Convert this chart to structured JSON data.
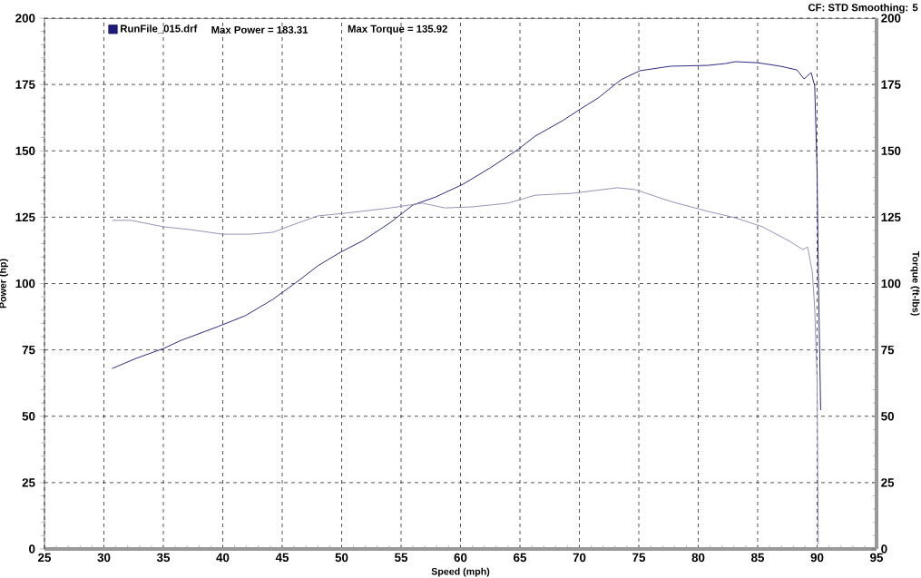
{
  "chart_data": {
    "type": "line",
    "xlabel": "Speed (mph)",
    "ylabel": "Power (hp)",
    "y2label": "Torque (ft-lbs)",
    "annotations": [
      "CF: STD Smoothing: 5",
      "Max Power = 183.31",
      "Max Torque = 135.92"
    ],
    "xlim": [
      25,
      95
    ],
    "xticks": [
      25,
      30,
      35,
      40,
      45,
      50,
      55,
      60,
      65,
      70,
      75,
      80,
      85,
      90,
      95
    ],
    "ylim": [
      0,
      200
    ],
    "yticks": [
      0,
      25,
      50,
      75,
      100,
      125,
      150,
      175,
      200
    ],
    "y2lim": [
      0,
      200
    ],
    "y2ticks": [
      0,
      25,
      50,
      75,
      100,
      125,
      150,
      175,
      200
    ],
    "grid": true,
    "legend": "top left",
    "series": [
      {
        "name": "RunFile_015.drf",
        "color": "#1c1c78",
        "x": [
          30.7,
          32.7,
          35,
          36.5,
          39.6,
          41.9,
          44.2,
          46.5,
          48,
          49.9,
          51.8,
          54.1,
          56,
          57.9,
          60.2,
          62.5,
          64.8,
          66.3,
          68.6,
          70.1,
          71.6,
          73.5,
          75.1,
          77.7,
          80.8,
          82.3,
          83.1,
          85,
          86.9,
          88.3,
          88.9,
          89.5,
          89.8,
          90.0,
          90.1,
          90.3
        ],
        "values": [
          68,
          71.8,
          75.5,
          78.6,
          83.8,
          87.9,
          94,
          101.5,
          106.7,
          111.8,
          116.2,
          123,
          129.6,
          132.6,
          137.4,
          143.6,
          150.4,
          155.6,
          161.4,
          165.8,
          170,
          176.8,
          180.2,
          181.9,
          182.2,
          182.9,
          183.6,
          183.2,
          181.9,
          180.5,
          177.1,
          179.5,
          174.4,
          141.9,
          104.3,
          52.3
        ]
      },
      {
        "color": "#8c8cb4",
        "axis": "y2",
        "x": [
          30.7,
          32.3,
          35,
          37.3,
          40,
          42.3,
          44.2,
          46.5,
          48,
          50.3,
          54.1,
          56.8,
          58.7,
          61,
          64,
          66.3,
          69.4,
          73.2,
          74.7,
          77.7,
          80.8,
          83.1,
          85.4,
          87.7,
          88.8,
          89.2,
          89.6,
          89.8,
          90.0,
          90.1
        ],
        "values": [
          123.8,
          123.8,
          121.4,
          120.3,
          118.6,
          118.6,
          119.3,
          123.1,
          125.5,
          126.5,
          128.5,
          130.3,
          128.5,
          128.9,
          130.3,
          133.3,
          134,
          136.1,
          135.4,
          130.9,
          127.2,
          124.8,
          121.4,
          115.9,
          112.8,
          113.8,
          104.3,
          90.6,
          63.2,
          1.7
        ]
      }
    ]
  }
}
